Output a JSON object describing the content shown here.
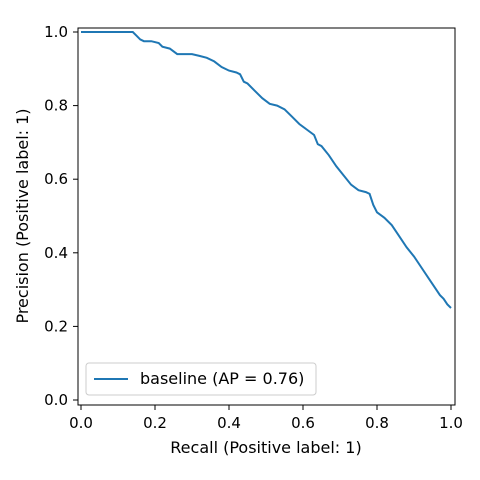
{
  "chart_data": {
    "type": "line",
    "title": "",
    "xlabel": "Recall (Positive label: 1)",
    "ylabel": "Precision (Positive label: 1)",
    "xlim": [
      0.0,
      1.0
    ],
    "ylim": [
      0.0,
      1.0
    ],
    "grid": false,
    "legend_position": "lower-left",
    "xticks": [
      "0.0",
      "0.2",
      "0.4",
      "0.6",
      "0.8",
      "1.0"
    ],
    "yticks": [
      "0.0",
      "0.2",
      "0.4",
      "0.6",
      "0.8",
      "1.0"
    ],
    "series": [
      {
        "name": "baseline (AP = 0.76)",
        "color": "#1f77b4",
        "x": [
          0.0,
          0.14,
          0.15,
          0.16,
          0.17,
          0.19,
          0.21,
          0.22,
          0.24,
          0.26,
          0.28,
          0.3,
          0.32,
          0.34,
          0.36,
          0.38,
          0.4,
          0.42,
          0.43,
          0.44,
          0.45,
          0.47,
          0.49,
          0.51,
          0.53,
          0.55,
          0.57,
          0.59,
          0.61,
          0.63,
          0.64,
          0.65,
          0.67,
          0.69,
          0.71,
          0.73,
          0.75,
          0.77,
          0.78,
          0.79,
          0.8,
          0.82,
          0.84,
          0.86,
          0.88,
          0.9,
          0.92,
          0.94,
          0.96,
          0.97,
          0.98,
          0.99,
          1.0
        ],
        "y": [
          1.0,
          1.0,
          0.99,
          0.98,
          0.975,
          0.975,
          0.97,
          0.96,
          0.955,
          0.94,
          0.94,
          0.94,
          0.935,
          0.93,
          0.92,
          0.905,
          0.895,
          0.89,
          0.885,
          0.865,
          0.86,
          0.84,
          0.82,
          0.805,
          0.8,
          0.79,
          0.77,
          0.75,
          0.735,
          0.72,
          0.695,
          0.69,
          0.665,
          0.635,
          0.61,
          0.585,
          0.57,
          0.565,
          0.56,
          0.53,
          0.51,
          0.495,
          0.475,
          0.445,
          0.415,
          0.39,
          0.36,
          0.33,
          0.3,
          0.285,
          0.275,
          0.26,
          0.25
        ]
      }
    ]
  }
}
